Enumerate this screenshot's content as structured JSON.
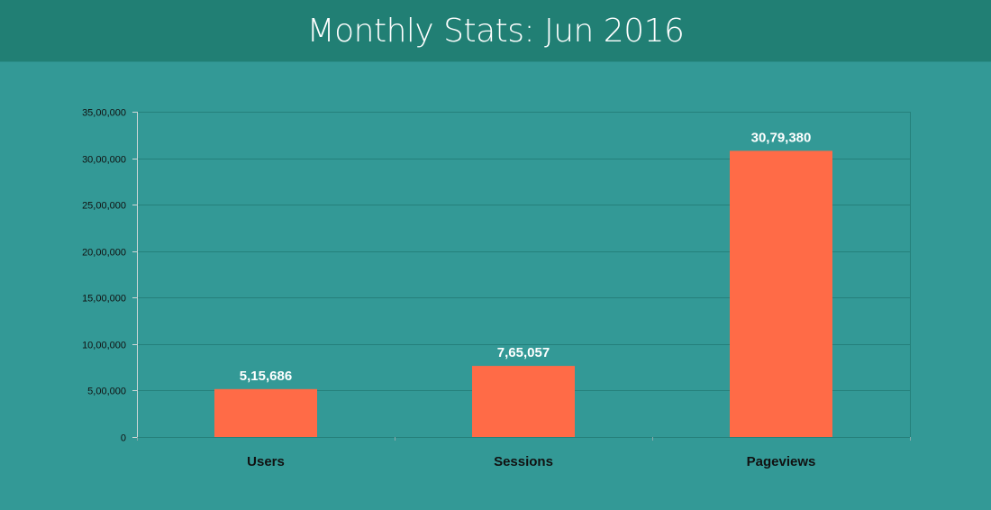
{
  "header": {
    "title": "Monthly Stats: Jun 2016"
  },
  "colors": {
    "bar": "#ff6b47",
    "background": "#339996",
    "header": "#217f74",
    "grid": "#25807b"
  },
  "chart_data": {
    "type": "bar",
    "title": "Monthly Stats: Jun 2016",
    "xlabel": "",
    "ylabel": "",
    "categories": [
      "Users",
      "Sessions",
      "Pageviews"
    ],
    "values": [
      515686,
      765057,
      3079380
    ],
    "value_labels": [
      "5,15,686",
      "7,65,057",
      "30,79,380"
    ],
    "ylim": [
      0,
      3500000
    ],
    "yticks": [
      0,
      500000,
      1000000,
      1500000,
      2000000,
      2500000,
      3000000,
      3500000
    ],
    "ytick_labels": [
      "0",
      "5,00,000",
      "10,00,000",
      "15,00,000",
      "20,00,000",
      "25,00,000",
      "30,00,000",
      "35,00,000"
    ],
    "grid": true,
    "legend": "none"
  }
}
